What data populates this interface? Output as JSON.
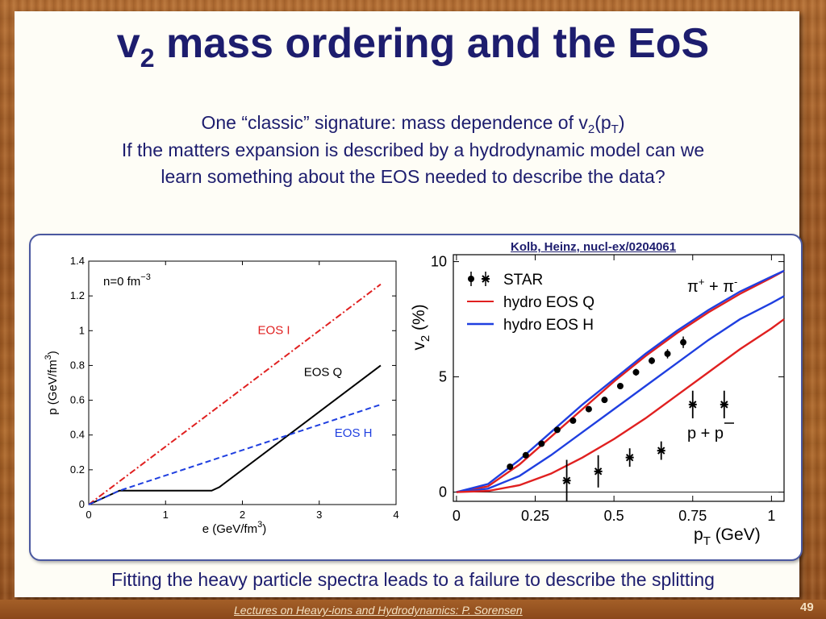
{
  "slide": {
    "title_main": "v",
    "title_sub": "2",
    "title_rest": " mass ordering and the EoS",
    "line1_a": "One “classic” signature: mass dependence of v",
    "line1_sub1": "2",
    "line1_b": "(p",
    "line1_sub2": "T",
    "line1_c": ")",
    "line2": "If the matters expansion is described by a hydrodynamic model can we",
    "line3": "learn something about the EOS needed to describe the data?",
    "citation": "Kolb, Heinz, nucl-ex/0204061",
    "caption": "Fitting the heavy particle spectra leads to a failure to describe the splitting",
    "footer": "Lectures on Heavy-ions and Hydrodynamics: P. Sorensen",
    "page_number": "49"
  },
  "chart_data": [
    {
      "type": "line",
      "x_tick_labels": [
        "0",
        "1",
        "2",
        "3",
        "4"
      ],
      "y_tick_labels": [
        "0",
        "0.2",
        "0.4",
        "0.6",
        "0.8",
        "1",
        "1.2",
        "1.4"
      ],
      "xlabel_main": "e (GeV/fm",
      "xlabel_sup": "3",
      "xlabel_end": ")",
      "ylabel_main": "p (GeV/fm",
      "ylabel_sup": "3",
      "ylabel_end": ")",
      "xlim": [
        0,
        4
      ],
      "ylim": [
        0,
        1.4
      ],
      "annotation_main": "n=0 fm",
      "annotation_sup": "−3",
      "series": [
        {
          "name": "EOS I",
          "color": "#e02020",
          "dash": "dashdot",
          "x": [
            0,
            3.8
          ],
          "y": [
            0,
            1.267
          ]
        },
        {
          "name": "EOS Q",
          "color": "#000000",
          "dash": "solid",
          "x": [
            0,
            0.4,
            1.6,
            1.7,
            3.8
          ],
          "y": [
            0,
            0.08,
            0.08,
            0.1,
            0.8
          ]
        },
        {
          "name": "EOS H",
          "color": "#1f3fe0",
          "dash": "dashed",
          "x": [
            0,
            0.4,
            3.8
          ],
          "y": [
            0,
            0.08,
            0.575
          ]
        }
      ],
      "label_positions": [
        {
          "text": "EOS I",
          "x": 2.2,
          "y": 0.98,
          "color": "#e02020"
        },
        {
          "text": "EOS Q",
          "x": 2.8,
          "y": 0.74,
          "color": "#000000"
        },
        {
          "text": "EOS H",
          "x": 3.2,
          "y": 0.39,
          "color": "#1f3fe0"
        }
      ]
    },
    {
      "type": "scatter",
      "x_tick_labels": [
        "0",
        "0.25",
        "0.5",
        "0.75",
        "1"
      ],
      "x_ticks": [
        0,
        0.25,
        0.5,
        0.75,
        1
      ],
      "y_tick_labels": [
        "0",
        "5",
        "10"
      ],
      "y_ticks": [
        0,
        5,
        10
      ],
      "xlim": [
        -0.01,
        1.04
      ],
      "ylim": [
        -0.4,
        10.3
      ],
      "xlabel_main": "p",
      "xlabel_sub": "T",
      "xlabel_end": " (GeV)",
      "ylabel_main": "v",
      "ylabel_sub": "2",
      "ylabel_end": " (%)",
      "legend": [
        "STAR",
        "hydro EOS Q",
        "hydro EOS H"
      ],
      "legend_colors": [
        "#000000",
        "#e02020",
        "#1f3fe0"
      ],
      "pion_label": "π",
      "pion_sup": "+",
      "pion_mid": " + π",
      "pion_sup2": "-",
      "proton_label": "p + p",
      "pion_data": {
        "x": [
          0.17,
          0.22,
          0.27,
          0.32,
          0.37,
          0.42,
          0.47,
          0.52,
          0.57,
          0.62,
          0.67,
          0.72
        ],
        "y": [
          1.1,
          1.6,
          2.1,
          2.7,
          3.1,
          3.6,
          4.0,
          4.6,
          5.2,
          5.7,
          6.0,
          6.5
        ],
        "err": [
          0.1,
          0.1,
          0.1,
          0.1,
          0.1,
          0.1,
          0.1,
          0.1,
          0.15,
          0.15,
          0.2,
          0.25
        ]
      },
      "proton_data": {
        "x": [
          0.35,
          0.45,
          0.55,
          0.65,
          0.75,
          0.85
        ],
        "y": [
          0.5,
          0.9,
          1.5,
          1.8,
          3.8,
          3.8
        ],
        "err": [
          0.9,
          0.7,
          0.4,
          0.4,
          0.6,
          0.6
        ]
      },
      "curves": [
        {
          "name": "pion EOS Q",
          "color": "#e02020",
          "x": [
            0,
            0.1,
            0.2,
            0.3,
            0.4,
            0.5,
            0.6,
            0.7,
            0.8,
            0.9,
            1.0,
            1.04
          ],
          "y": [
            0,
            0.25,
            1.2,
            2.4,
            3.6,
            4.8,
            5.9,
            6.9,
            7.8,
            8.6,
            9.3,
            9.6
          ]
        },
        {
          "name": "pion EOS H",
          "color": "#1f3fe0",
          "x": [
            0,
            0.1,
            0.2,
            0.3,
            0.4,
            0.5,
            0.6,
            0.7,
            0.8,
            0.9,
            1.0,
            1.04
          ],
          "y": [
            0,
            0.35,
            1.4,
            2.6,
            3.8,
            4.9,
            6.0,
            7.0,
            7.9,
            8.7,
            9.35,
            9.6
          ]
        },
        {
          "name": "proton EOS H",
          "color": "#1f3fe0",
          "x": [
            0,
            0.1,
            0.2,
            0.3,
            0.4,
            0.5,
            0.6,
            0.7,
            0.8,
            0.9,
            1.0,
            1.04
          ],
          "y": [
            0,
            0.15,
            0.7,
            1.6,
            2.6,
            3.6,
            4.6,
            5.6,
            6.6,
            7.5,
            8.2,
            8.5
          ]
        },
        {
          "name": "proton EOS Q",
          "color": "#e02020",
          "x": [
            0,
            0.1,
            0.2,
            0.3,
            0.4,
            0.5,
            0.6,
            0.7,
            0.8,
            0.9,
            1.0,
            1.04
          ],
          "y": [
            0,
            0.05,
            0.3,
            0.8,
            1.5,
            2.3,
            3.2,
            4.2,
            5.2,
            6.2,
            7.1,
            7.5
          ]
        }
      ]
    }
  ]
}
